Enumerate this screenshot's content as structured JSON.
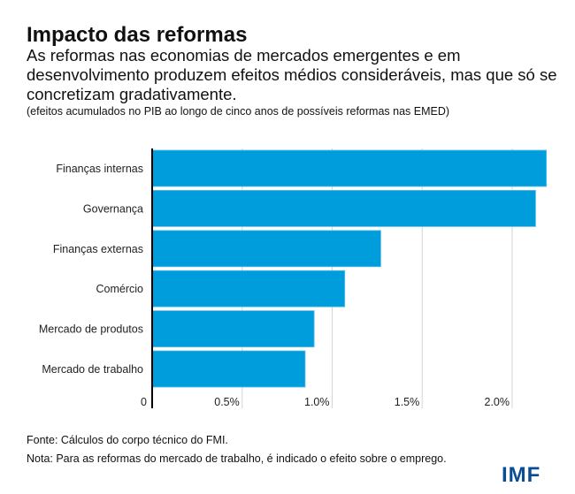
{
  "title": "Impacto das reformas",
  "subtitle": "As reformas nas economias de mercados emergentes e em desenvolvimento produzem efeitos médios consideráveis, mas que só se concretizam gradativamente.",
  "note": "(efeitos acumulados no PIB ao longo de cinco anos de possíveis reformas nas EMED)",
  "source": "Fonte: Cálculos do corpo técnico do FMI.",
  "footnote": "Nota: Para as reformas do mercado de trabalho, é indicado o efeito sobre o emprego.",
  "logo": "IMF",
  "chart_data": {
    "type": "bar",
    "orientation": "horizontal",
    "categories": [
      "Finanças internas",
      "Governança",
      "Finanças externas",
      "Comércio",
      "Mercado de produtos",
      "Mercado de trabalho"
    ],
    "values": [
      2.19,
      2.13,
      1.27,
      1.07,
      0.9,
      0.85
    ],
    "unit": "%",
    "xlim": [
      0,
      2.25
    ],
    "ticks": [
      0,
      0.5,
      1.0,
      1.5,
      2.0
    ],
    "tick_labels": [
      "0",
      "0.5%",
      "1.0%",
      "1.5%",
      "2.0%"
    ],
    "grid": true,
    "color": "#009ddc"
  }
}
